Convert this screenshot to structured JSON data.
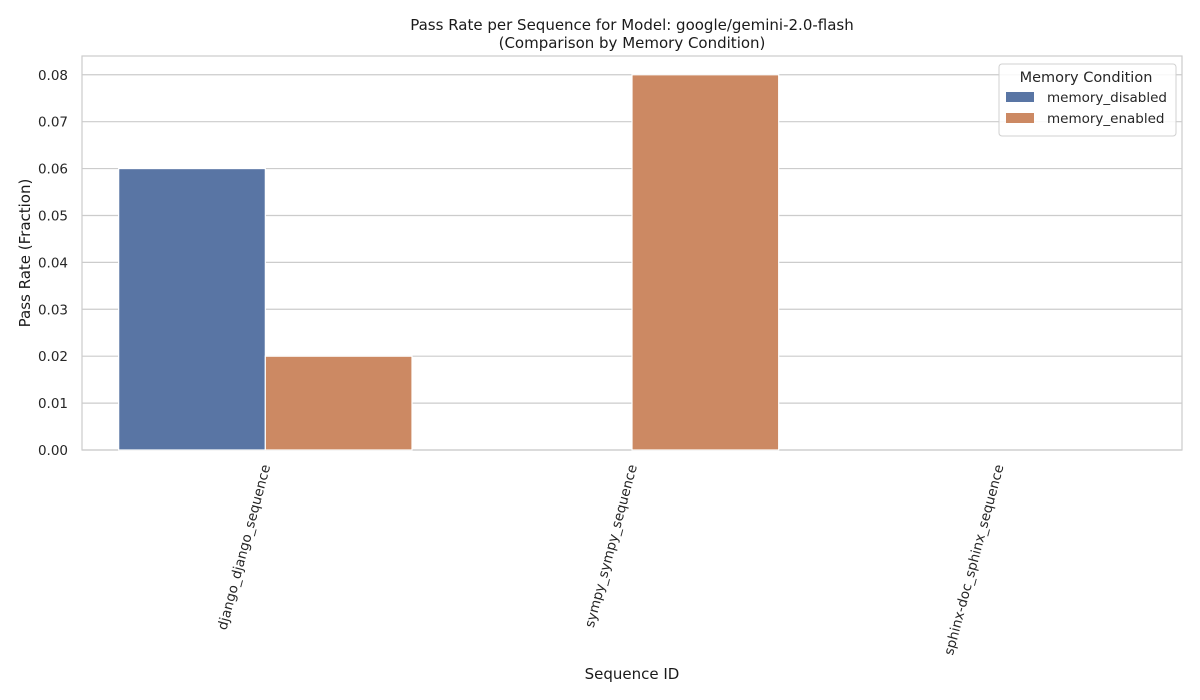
{
  "chart_data": {
    "type": "bar",
    "title": "Pass Rate per Sequence for Model: google/gemini-2.0-flash",
    "subtitle": "(Comparison by Memory Condition)",
    "xlabel": "Sequence ID",
    "ylabel": "Pass Rate (Fraction)",
    "categories": [
      "django_django_sequence",
      "sympy_sympy_sequence",
      "sphinx-doc_sphinx_sequence"
    ],
    "series": [
      {
        "name": "memory_disabled",
        "color": "#5975a4",
        "values": [
          0.06,
          0.0,
          0.0
        ]
      },
      {
        "name": "memory_enabled",
        "color": "#cc8963",
        "values": [
          0.02,
          0.08,
          0.0
        ]
      }
    ],
    "ylim": [
      0,
      0.084
    ],
    "yticks": [
      "0.00",
      "0.01",
      "0.02",
      "0.03",
      "0.04",
      "0.05",
      "0.06",
      "0.07",
      "0.08"
    ],
    "grid": true,
    "legend": {
      "title": "Memory Condition",
      "placement": "top-right"
    }
  }
}
